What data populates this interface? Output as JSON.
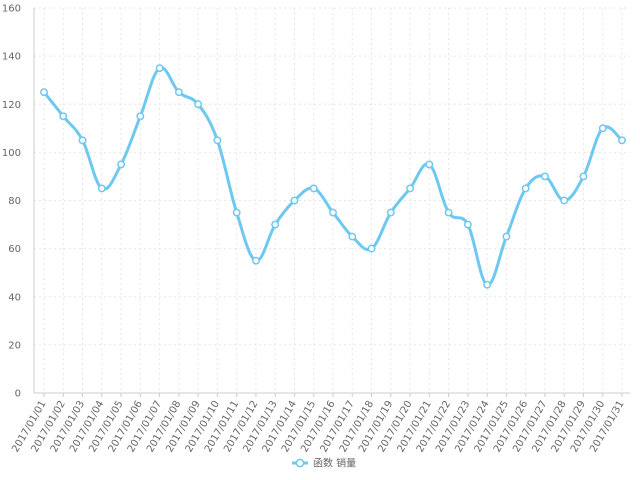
{
  "chart_data": {
    "type": "line",
    "title": "",
    "xlabel": "",
    "ylabel": "",
    "ylim": [
      0,
      160
    ],
    "yticks": [
      "0",
      "20",
      "40",
      "60",
      "80",
      "100",
      "120",
      "140",
      "160"
    ],
    "grid": true,
    "smooth": true,
    "legend_position": "bottom-center",
    "line_color": "#6ec8ef",
    "categories": [
      "2017/01/01",
      "2017/01/02",
      "2017/01/03",
      "2017/01/04",
      "2017/01/05",
      "2017/01/06",
      "2017/01/07",
      "2017/01/08",
      "2017/01/09",
      "2017/01/10",
      "2017/01/11",
      "2017/01/12",
      "2017/01/13",
      "2017/01/14",
      "2017/01/15",
      "2017/01/16",
      "2017/01/17",
      "2017/01/18",
      "2017/01/19",
      "2017/01/20",
      "2017/01/21",
      "2017/01/22",
      "2017/01/23",
      "2017/01/24",
      "2017/01/25",
      "2017/01/26",
      "2017/01/27",
      "2017/01/28",
      "2017/01/29",
      "2017/01/30",
      "2017/01/31"
    ],
    "series": [
      {
        "name": "函数 销量",
        "values": [
          125,
          115,
          105,
          85,
          95,
          115,
          135,
          125,
          120,
          105,
          75,
          55,
          70,
          80,
          85,
          75,
          65,
          60,
          75,
          85,
          95,
          75,
          70,
          45,
          65,
          85,
          90,
          80,
          90,
          110,
          105
        ]
      }
    ]
  }
}
